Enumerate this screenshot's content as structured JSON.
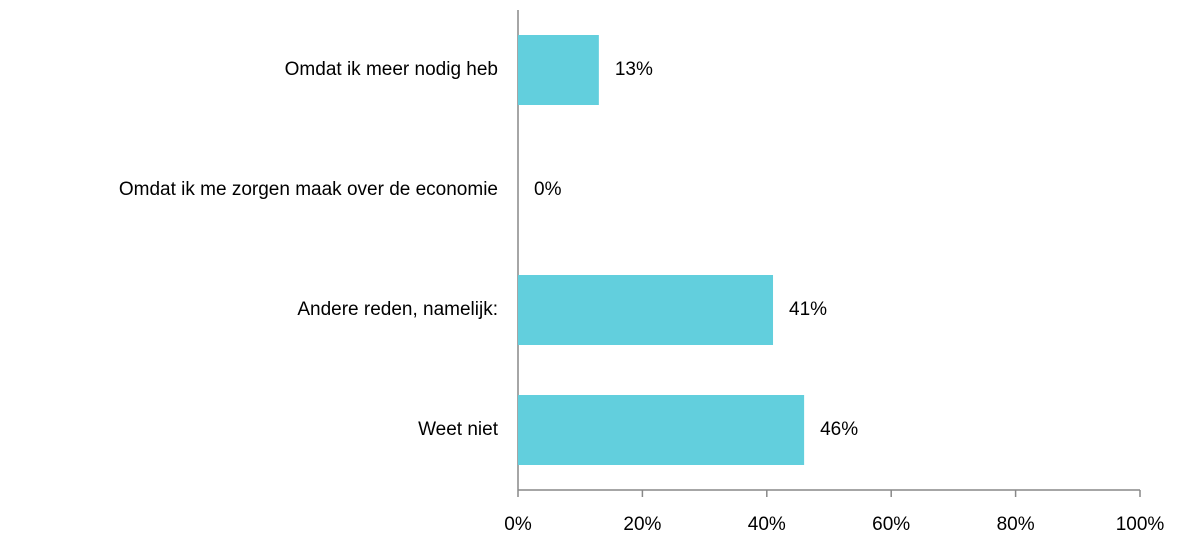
{
  "chart_data": {
    "type": "bar",
    "orientation": "horizontal",
    "categories": [
      "Omdat ik meer nodig heb",
      "Omdat ik me zorgen maak over de economie",
      "Andere reden, namelijk:",
      "Weet niet"
    ],
    "values": [
      13,
      0,
      41,
      46
    ],
    "value_labels": [
      "13%",
      "0%",
      "41%",
      "46%"
    ],
    "color": "#62cfdd",
    "xlim": [
      0,
      100
    ],
    "xticks": [
      {
        "value": 0,
        "label": "0%"
      },
      {
        "value": 20,
        "label": "20%"
      },
      {
        "value": 40,
        "label": "40%"
      },
      {
        "value": 60,
        "label": "60%"
      },
      {
        "value": 80,
        "label": "80%"
      },
      {
        "value": 100,
        "label": "100%"
      }
    ],
    "grid": false
  }
}
